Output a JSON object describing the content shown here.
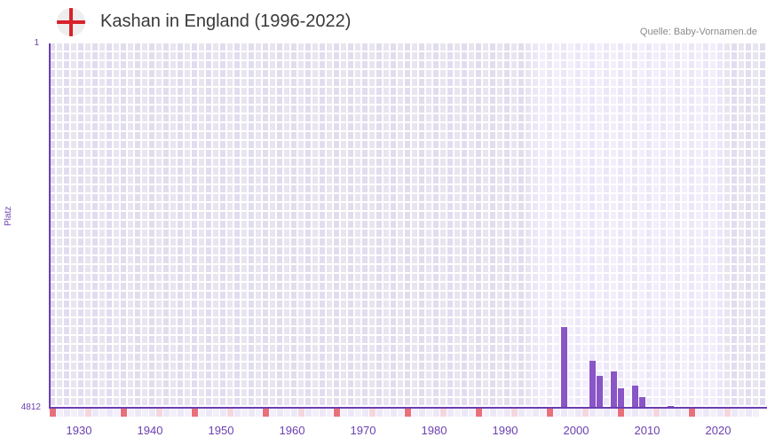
{
  "header": {
    "flag_icon": "england-flag-icon",
    "title": "Kashan in England (1996-2022)",
    "source": "Quelle: Baby-Vornamen.de"
  },
  "colors": {
    "accent": "#6a3fb0",
    "bar": "#8a55c6",
    "marker_decade": "#e8707a",
    "marker_half": "#f5d6de",
    "bg_out_of_range": "#e4e0ef",
    "bg_in_range": "#efeafa"
  },
  "chart_data": {
    "type": "bar",
    "title": "Kashan in England (1996-2022)",
    "xlabel": "",
    "ylabel": "Platz",
    "y_inverted": true,
    "ylim": [
      1,
      4812
    ],
    "ytick_labels": [
      "1",
      "4812"
    ],
    "xlim": [
      1928,
      2028
    ],
    "xtick_labels": [
      "1930",
      "1940",
      "1950",
      "1960",
      "1970",
      "1980",
      "1990",
      "2000",
      "2010",
      "2020"
    ],
    "data_range_years": [
      1996,
      2022
    ],
    "grid": true,
    "legend": null,
    "x": [
      2000,
      2004,
      2005,
      2007,
      2008,
      2010,
      2011,
      2015
    ],
    "values": [
      3747,
      4192,
      4391,
      4332,
      4555,
      4519,
      4672,
      4789
    ]
  }
}
